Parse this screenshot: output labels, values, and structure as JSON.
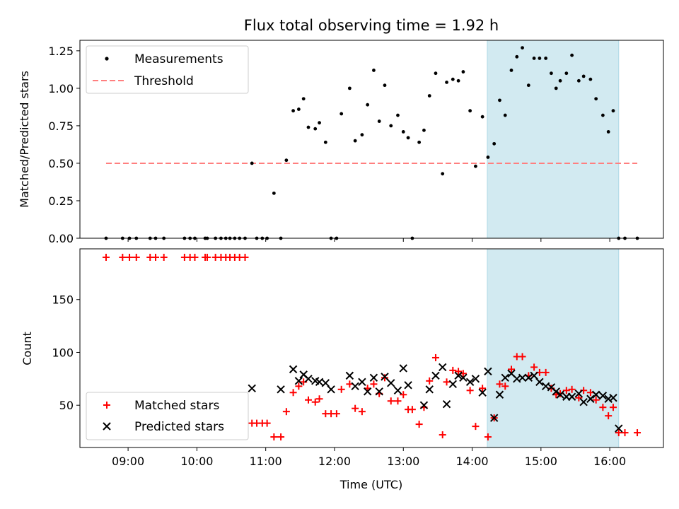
{
  "chart_data": [
    {
      "type": "scatter",
      "title": "Flux total observing time = 1.92 h",
      "ylabel": "Matched/Predicted stars",
      "ylim": [
        0,
        1.32
      ],
      "yticks": [
        0.0,
        0.25,
        0.5,
        0.75,
        1.0,
        1.25
      ],
      "ytick_labels": [
        "0.00",
        "0.25",
        "0.50",
        "0.75",
        "1.00",
        "1.25"
      ],
      "shade": {
        "x_start_hour": 14.22,
        "x_end_hour": 16.13,
        "color": "#add8e6"
      },
      "legend": {
        "position": "upper-left",
        "entries": [
          "Measurements",
          "Threshold"
        ]
      },
      "series": [
        {
          "name": "Measurements",
          "color": "#000000",
          "x_hours": [
            8.68,
            8.92,
            9.02,
            9.12,
            9.32,
            9.4,
            9.52,
            9.82,
            9.9,
            9.97,
            10.12,
            10.15,
            10.27,
            10.35,
            10.42,
            10.48,
            10.55,
            10.62,
            10.7,
            10.8,
            10.87,
            10.95,
            11.02,
            11.12,
            11.22,
            11.3,
            11.4,
            11.48,
            11.55,
            11.62,
            11.72,
            11.78,
            11.87,
            11.95,
            12.03,
            12.1,
            12.22,
            12.3,
            12.4,
            12.48,
            12.57,
            12.65,
            12.73,
            12.82,
            12.92,
            13.0,
            13.07,
            13.13,
            13.23,
            13.3,
            13.38,
            13.47,
            13.57,
            13.63,
            13.72,
            13.8,
            13.87,
            13.97,
            14.05,
            14.15,
            14.23,
            14.32,
            14.4,
            14.48,
            14.57,
            14.65,
            14.73,
            14.82,
            14.9,
            14.98,
            15.07,
            15.15,
            15.22,
            15.28,
            15.37,
            15.45,
            15.55,
            15.62,
            15.72,
            15.8,
            15.9,
            15.98,
            16.05,
            16.13,
            16.22,
            16.4
          ],
          "y": [
            0.0,
            0.0,
            0.0,
            0.0,
            0.0,
            0.0,
            0.0,
            0.0,
            0.0,
            0.0,
            0.0,
            0.0,
            0.0,
            0.0,
            0.0,
            0.0,
            0.0,
            0.0,
            0.0,
            0.5,
            0.0,
            0.0,
            0.0,
            0.3,
            0.0,
            0.52,
            0.85,
            0.86,
            0.93,
            0.74,
            0.73,
            0.77,
            0.64,
            0.0,
            0.0,
            0.83,
            1.0,
            0.65,
            0.69,
            0.89,
            1.12,
            0.78,
            1.02,
            0.75,
            0.82,
            0.71,
            0.67,
            0.0,
            0.64,
            0.72,
            0.95,
            1.1,
            0.43,
            1.04,
            1.06,
            1.05,
            1.11,
            0.85,
            0.48,
            0.81,
            0.54,
            0.63,
            0.92,
            0.82,
            1.12,
            1.21,
            1.27,
            1.02,
            1.2,
            1.2,
            1.2,
            1.1,
            1.0,
            1.05,
            1.1,
            1.22,
            1.05,
            1.08,
            1.06,
            0.93,
            0.82,
            0.71,
            0.85,
            0.0,
            0.0,
            0.0
          ]
        },
        {
          "name": "Threshold",
          "color": "#ff7f7f",
          "style": "dashed",
          "x_hours": [
            8.68,
            16.4
          ],
          "y": [
            0.5,
            0.5
          ]
        }
      ]
    },
    {
      "type": "scatter",
      "xlabel": "Time (UTC)",
      "ylabel": "Count",
      "xlim_hours": [
        8.3,
        16.78
      ],
      "ylim": [
        10,
        198
      ],
      "xticks_hours": [
        9,
        10,
        11,
        12,
        13,
        14,
        15,
        16
      ],
      "xtick_labels": [
        "09:00",
        "10:00",
        "11:00",
        "12:00",
        "13:00",
        "14:00",
        "15:00",
        "16:00"
      ],
      "yticks": [
        50,
        100,
        150
      ],
      "ytick_labels": [
        "50",
        "100",
        "150"
      ],
      "shade": {
        "x_start_hour": 14.22,
        "x_end_hour": 16.13,
        "color": "#add8e6"
      },
      "legend": {
        "position": "lower-left",
        "entries": [
          "Matched stars",
          "Predicted stars"
        ]
      },
      "series": [
        {
          "name": "Matched stars",
          "marker": "+",
          "color": "#ff0000",
          "x_hours": [
            8.68,
            8.92,
            9.02,
            9.12,
            9.32,
            9.4,
            9.52,
            9.82,
            9.9,
            9.97,
            10.12,
            10.15,
            10.27,
            10.35,
            10.42,
            10.48,
            10.55,
            10.62,
            10.7,
            10.8,
            10.87,
            10.95,
            11.02,
            11.12,
            11.22,
            11.3,
            11.4,
            11.48,
            11.55,
            11.62,
            11.72,
            11.78,
            11.87,
            11.95,
            12.03,
            12.1,
            12.22,
            12.3,
            12.4,
            12.48,
            12.57,
            12.65,
            12.73,
            12.82,
            12.92,
            13.0,
            13.07,
            13.13,
            13.23,
            13.3,
            13.38,
            13.47,
            13.57,
            13.63,
            13.72,
            13.8,
            13.87,
            13.97,
            14.05,
            14.15,
            14.23,
            14.32,
            14.4,
            14.48,
            14.57,
            14.65,
            14.73,
            14.82,
            14.9,
            14.98,
            15.07,
            15.15,
            15.22,
            15.28,
            15.37,
            15.45,
            15.55,
            15.62,
            15.72,
            15.8,
            15.9,
            15.98,
            16.05,
            16.13,
            16.22,
            16.4
          ],
          "y": [
            190,
            190,
            190,
            190,
            190,
            190,
            190,
            190,
            190,
            190,
            190,
            190,
            190,
            190,
            190,
            190,
            190,
            190,
            190,
            33,
            33,
            33,
            33,
            20,
            20,
            44,
            62,
            68,
            72,
            55,
            53,
            56,
            42,
            42,
            42,
            65,
            70,
            47,
            44,
            66,
            70,
            61,
            76,
            54,
            54,
            60,
            46,
            46,
            32,
            48,
            73,
            95,
            22,
            72,
            83,
            82,
            80,
            64,
            30,
            66,
            20,
            38,
            70,
            68,
            84,
            96,
            96,
            78,
            86,
            81,
            81,
            66,
            60,
            61,
            64,
            65,
            57,
            64,
            62,
            55,
            48,
            40,
            48,
            24,
            24,
            24
          ]
        },
        {
          "name": "Predicted stars",
          "marker": "x",
          "color": "#000000",
          "x_hours": [
            10.8,
            11.22,
            11.4,
            11.48,
            11.55,
            11.62,
            11.72,
            11.78,
            11.87,
            11.95,
            12.22,
            12.3,
            12.4,
            12.48,
            12.57,
            12.65,
            12.73,
            12.82,
            12.92,
            13.0,
            13.07,
            13.3,
            13.38,
            13.47,
            13.57,
            13.63,
            13.72,
            13.8,
            13.87,
            13.97,
            14.05,
            14.15,
            14.23,
            14.32,
            14.4,
            14.48,
            14.57,
            14.65,
            14.73,
            14.82,
            14.9,
            14.98,
            15.07,
            15.15,
            15.22,
            15.28,
            15.37,
            15.45,
            15.55,
            15.62,
            15.72,
            15.8,
            15.9,
            15.98,
            16.05,
            16.13
          ],
          "y": [
            66,
            65,
            84,
            73,
            79,
            75,
            73,
            72,
            71,
            65,
            78,
            68,
            72,
            63,
            76,
            63,
            77,
            71,
            64,
            85,
            69,
            50,
            65,
            78,
            86,
            51,
            70,
            78,
            76,
            72,
            75,
            62,
            82,
            38,
            60,
            76,
            80,
            75,
            76,
            76,
            78,
            72,
            68,
            67,
            63,
            60,
            58,
            58,
            61,
            53,
            56,
            60,
            59,
            56,
            57,
            28
          ]
        }
      ]
    }
  ]
}
